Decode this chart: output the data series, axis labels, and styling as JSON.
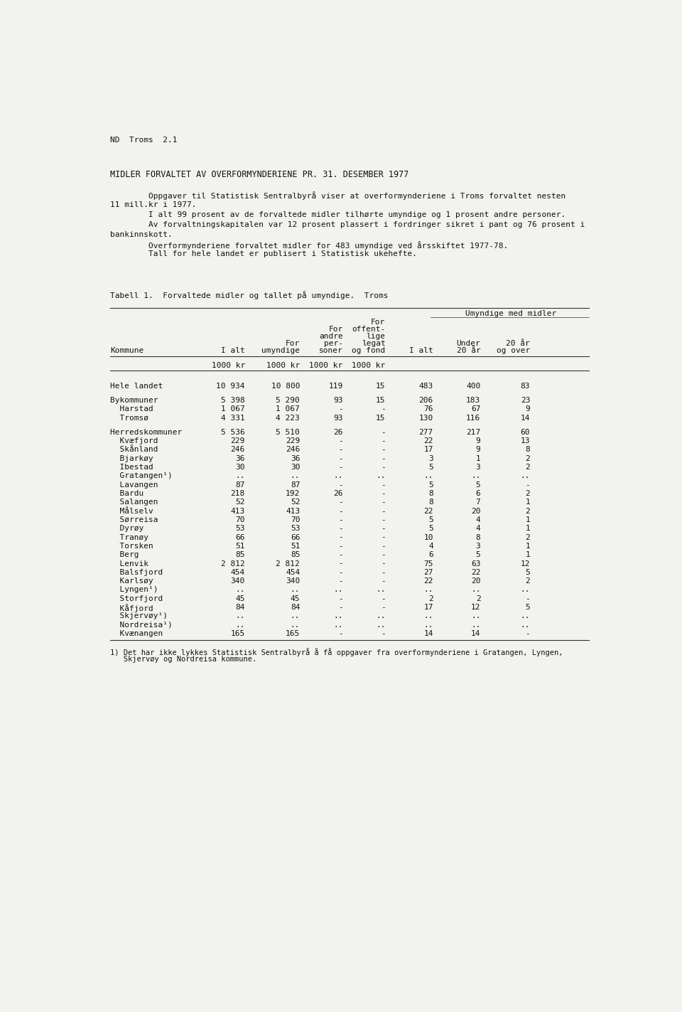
{
  "page_label": "ND  Troms  2.1",
  "main_title": "MIDLER FORVALTET AV OVERFORMYNDERIENE PR. 31. DESEMBER 1977",
  "para1a": "        Oppgaver til Statistisk Sentralbyrå viser at overformynderiene i Troms forvaltet nesten",
  "para1b": "11 mill.kr i 1977.",
  "para2": "        I alt 99 prosent av de forvaltede midler tilhørte umyndige og 1 prosent andre personer.",
  "para3a": "        Av forvaltningskapitalen var 12 prosent plassert i fordringer sikret i pant og 76 prosent i",
  "para3b": "bankinnskott.",
  "para4": "        Overformynderiene forvaltet midler for 483 umyndige ved årsskiftet 1977-78.",
  "para5": "        Tall for hele landet er publisert i Statistisk ukehefte.",
  "table_title": "Tabell 1.  Forvaltede midler og tallet på umyndige.  Troms",
  "umyndige_header": "Umyndige med midler",
  "hdr_kommune": "Kommune",
  "hdr_ialt": "I alt",
  "hdr_forumyndige_1": "For",
  "hdr_forumyndige_2": "umyndige",
  "hdr_forandra_1": "For",
  "hdr_forandra_2": "andre",
  "hdr_forandra_3": "per-",
  "hdr_forandra_4": "soner",
  "hdr_foroffentlig_1": "For",
  "hdr_foroffentlig_2": "offent-",
  "hdr_foroffentlig_3": "lige",
  "hdr_foroffentlig_4": "legat",
  "hdr_foroffentlig_5": "og fond",
  "hdr_ialt2": "I alt",
  "hdr_under20_1": "Under",
  "hdr_under20_2": "20 år",
  "hdr_20over_1": "20 år",
  "hdr_20over_2": "og over",
  "units_ialt": "1000 kr",
  "units_forumyndige": "1000 kr",
  "units_forandra": "1000 kr",
  "units_foroffentlig": "1000 kr",
  "rows": [
    [
      "Hele landet              ",
      "10 934",
      "10 800",
      "119",
      "15",
      "483",
      "400",
      "83",
      "spacer_before"
    ],
    [
      "Bykommuner             ",
      "5 398",
      "5 290",
      "93",
      "15",
      "206",
      "183",
      "23",
      "spacer_before"
    ],
    [
      "  Harstad              ",
      "1 067",
      "1 067",
      "-",
      "-",
      "76",
      "67",
      "9",
      "normal"
    ],
    [
      "  Tromsø              ",
      "4 331",
      "4 223",
      "93",
      "15",
      "130",
      "116",
      "14",
      "normal"
    ],
    [
      "Herredskommuner       ",
      "5 536",
      "5 510",
      "26",
      "-",
      "277",
      "217",
      "60",
      "spacer_before"
    ],
    [
      "  Kvæfjord            ",
      "229",
      "229",
      "-",
      "-",
      "22",
      "9",
      "13",
      "normal"
    ],
    [
      "  Skånland            ",
      "246",
      "246",
      "-",
      "-",
      "17",
      "9",
      "8",
      "normal"
    ],
    [
      "  Bjarkøy            ",
      "36",
      "36",
      "-",
      "-",
      "3",
      "1",
      "2",
      "normal"
    ],
    [
      "  Ibestad            ",
      "30",
      "30",
      "-",
      "-",
      "5",
      "3",
      "2",
      "normal"
    ],
    [
      "  Gratangen¹)         ",
      "..",
      "..",
      "..",
      "..",
      "..",
      "..",
      "..",
      "normal"
    ],
    [
      "  Lavangen            ",
      "87",
      "87",
      "-",
      "-",
      "5",
      "5",
      "-",
      "normal"
    ],
    [
      "  Bardu              ",
      "218",
      "192",
      "26",
      "-",
      "8",
      "6",
      "2",
      "normal"
    ],
    [
      "  Salangen            ",
      "52",
      "52",
      "-",
      "-",
      "8",
      "7",
      "1",
      "normal"
    ],
    [
      "  Målselv            ",
      "413",
      "413",
      "-",
      "-",
      "22",
      "20",
      "2",
      "normal"
    ],
    [
      "  Sørreisa            ",
      "70",
      "70",
      "-",
      "-",
      "5",
      "4",
      "1",
      "normal"
    ],
    [
      "  Dyrøy              ",
      "53",
      "53",
      "-",
      "-",
      "5",
      "4",
      "1",
      "normal"
    ],
    [
      "  Tranøy             ",
      "66",
      "66",
      "-",
      "-",
      "10",
      "8",
      "2",
      "normal"
    ],
    [
      "  Torsken            ",
      "51",
      "51",
      "-",
      "-",
      "4",
      "3",
      "1",
      "normal"
    ],
    [
      "  Berg               ",
      "85",
      "85",
      "-",
      "-",
      "6",
      "5",
      "1",
      "normal"
    ],
    [
      "  Lenvik             ",
      "2 812",
      "2 812",
      "-",
      "-",
      "75",
      "63",
      "12",
      "normal"
    ],
    [
      "  Balsfjord           ",
      "454",
      "454",
      "-",
      "-",
      "27",
      "22",
      "5",
      "normal"
    ],
    [
      "  Karlsøy            ",
      "340",
      "340",
      "-",
      "-",
      "22",
      "20",
      "2",
      "normal"
    ],
    [
      "  Lyngen¹)           ",
      "..",
      "..",
      "..",
      "..",
      "..",
      "..",
      "..",
      "normal"
    ],
    [
      "  Storfjord            ",
      "45",
      "45",
      "-",
      "-",
      "2",
      "2",
      "-",
      "normal"
    ],
    [
      "  Kåfjord            ",
      "84",
      "84",
      "-",
      "-",
      "17",
      "12",
      "5",
      "normal"
    ],
    [
      "  Skjervøy¹)         ",
      "..",
      "..",
      "..",
      "..",
      "..",
      "..",
      "..",
      "normal"
    ],
    [
      "  Nordreisa¹)        ",
      "..",
      "..",
      "..",
      "..",
      "..",
      "..",
      "..",
      "normal"
    ],
    [
      "  Kvænangen           ",
      "165",
      "165",
      "-",
      "-",
      "14",
      "14",
      "-",
      "normal"
    ]
  ],
  "footnote_line1": "1) Det har ikke lykkes Statistisk Sentralbyrå å få oppgaver fra overformynderiene i Gratangen, Lyngen,",
  "footnote_line2": "   Skjervøy og Nordreisa kommune.",
  "bg_color": "#f2f2ee",
  "text_color": "#111111",
  "font_size": 8.0,
  "title_font_size": 8.5,
  "table_line_color": "#333333"
}
